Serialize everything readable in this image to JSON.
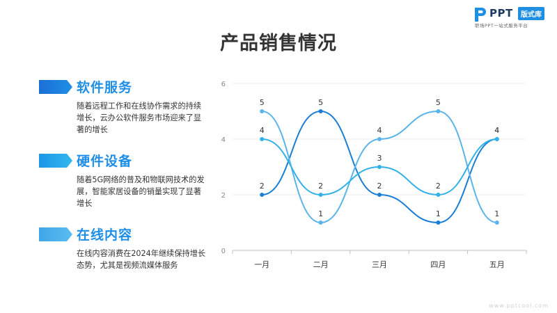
{
  "brand": {
    "logo_text": "PPT",
    "badge_text": "版式库",
    "slogan": "职场PPT一站式服务平台",
    "watermark": "www.pptcool.com",
    "accent": "#1e8ee6"
  },
  "page": {
    "title": "产品销售情况"
  },
  "sections": [
    {
      "title": "软件服务",
      "desc": "随着远程工作和在线协作需求的持续增长，云办公软件服务市场迎来了显著的增长",
      "icon": "chevron-right-icon",
      "color": "#1b7fe0"
    },
    {
      "title": "硬件设备",
      "desc": "随着5G网络的普及和物联网技术的发展，智能家居设备的销量实现了显著增长",
      "icon": "chevron-right-icon",
      "color": "#25a9ee"
    },
    {
      "title": "在线内容",
      "desc": "在线内容消费在2024年继续保持增长态势，尤其是视频流媒体服务",
      "icon": "chevron-right-icon",
      "color": "#4fb3ec"
    }
  ],
  "chart_data": {
    "type": "line",
    "smooth": true,
    "categories": [
      "一月",
      "二月",
      "三月",
      "四月",
      "五月"
    ],
    "ylim": [
      0,
      6
    ],
    "yticks": [
      0,
      2,
      4,
      6
    ],
    "grid": true,
    "series": [
      {
        "values": [
          2,
          5,
          2,
          1,
          4
        ],
        "color": "#1a7fd4"
      },
      {
        "values": [
          5,
          1,
          4,
          5,
          1
        ],
        "color": "#5ab4ea"
      },
      {
        "values": [
          4,
          2,
          3,
          2,
          4
        ],
        "color": "#34b1e8"
      }
    ]
  }
}
